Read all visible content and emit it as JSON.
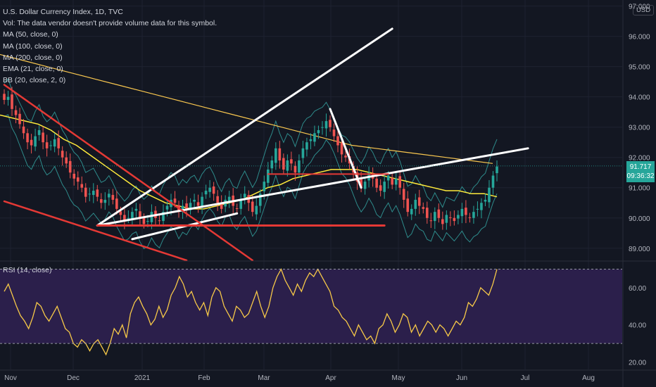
{
  "header": {
    "title": "U.S. Dollar Currency Index, 1D, TVC",
    "volume_note": "Vol: The data vendor doesn't provide volume data for this symbol.",
    "indicators": [
      "MA (50, close, 0)",
      "MA (100, close, 0)",
      "MA (200, close, 0)",
      "EMA (21, close, 0)",
      "BB (20, close, 2, 0)"
    ]
  },
  "currency_button": "USD",
  "price_tag": {
    "value": "91.717",
    "countdown": "09:36:32"
  },
  "rsi_label": "RSI (14, close)",
  "colors": {
    "background": "#131722",
    "up": "#26a69a",
    "down": "#ef5350",
    "ma50": "#ffeb3b",
    "ma200": "#f9c74f",
    "ma100": "#4a6fa5",
    "bb": "#2e8b8b",
    "rsi": "#f7c948",
    "rsi_band": "#2b1f4b",
    "trendline_white": "#ffffff",
    "trendline_red": "#e53935"
  },
  "chart_data": {
    "type": "candlestick",
    "x_ticks": [
      "Nov",
      "Dec",
      "2021",
      "Feb",
      "Mar",
      "Apr",
      "May",
      "Jun",
      "Jul",
      "Aug"
    ],
    "price_ticks": [
      "97.000",
      "96.000",
      "95.000",
      "94.000",
      "93.000",
      "92.000",
      "91.000",
      "90.000",
      "89.000"
    ],
    "price_range": [
      88.6,
      97.2
    ],
    "last_price": 91.717,
    "close_series": [
      93.9,
      94.0,
      93.6,
      93.4,
      93.1,
      92.8,
      92.5,
      92.4,
      92.7,
      92.9,
      92.5,
      92.3,
      92.4,
      92.6,
      92.3,
      92.0,
      91.8,
      91.5,
      91.3,
      91.2,
      91.0,
      90.7,
      90.8,
      90.9,
      90.7,
      90.5,
      90.6,
      90.8,
      90.6,
      90.3,
      90.1,
      89.9,
      90.0,
      90.2,
      90.3,
      90.0,
      89.8,
      89.9,
      90.2,
      90.0,
      89.9,
      90.2,
      90.4,
      90.6,
      90.5,
      90.2,
      90.4,
      90.3,
      90.5,
      90.6,
      90.4,
      90.7,
      90.9,
      91.0,
      90.8,
      90.5,
      90.3,
      90.6,
      90.7,
      90.4,
      90.3,
      90.6,
      90.8,
      90.5,
      90.2,
      90.4,
      90.8,
      91.2,
      91.6,
      91.9,
      92.3,
      91.9,
      91.6,
      91.9,
      91.8,
      91.5,
      91.9,
      92.3,
      92.5,
      92.6,
      92.8,
      92.9,
      93.0,
      93.2,
      93.0,
      92.7,
      92.4,
      92.1,
      92.0,
      91.8,
      91.5,
      91.2,
      91.0,
      91.2,
      91.5,
      91.3,
      91.0,
      90.9,
      91.2,
      91.4,
      91.1,
      91.3,
      91.0,
      90.6,
      90.2,
      90.3,
      90.6,
      90.4,
      90.3,
      90.0,
      89.9,
      90.2,
      90.0,
      89.8,
      90.1,
      90.0,
      89.9,
      90.1,
      90.3,
      90.1,
      90.0,
      90.2,
      90.3,
      90.5,
      90.6,
      91.0,
      91.4,
      91.7
    ],
    "ma50_series": [
      93.4,
      93.3,
      93.2,
      93.1,
      92.9,
      92.6,
      92.4,
      92.1,
      91.8,
      91.5,
      91.2,
      90.9,
      90.7,
      90.5,
      90.4,
      90.3,
      90.3,
      90.4,
      90.5,
      90.6,
      90.8,
      91.0,
      91.1,
      91.3,
      91.4,
      91.5,
      91.6,
      91.6,
      91.6,
      91.5,
      91.4,
      91.3,
      91.2,
      91.1,
      91.0,
      90.9,
      90.9,
      90.8,
      90.8,
      90.7
    ],
    "ma200_series": [
      95.4,
      95.2,
      95.0,
      94.8,
      94.6,
      94.4,
      94.2,
      94.0,
      93.8,
      93.6,
      93.4,
      93.2,
      93.0,
      92.8,
      92.6,
      92.4,
      92.3,
      92.2,
      92.1,
      92.0,
      91.9,
      91.8
    ],
    "rsi_ticks": [
      "60.00",
      "40.00",
      "20.00"
    ],
    "rsi_range": [
      16,
      74
    ],
    "rsi_bands": [
      70,
      30
    ],
    "rsi_series": [
      58,
      62,
      56,
      50,
      45,
      42,
      38,
      44,
      52,
      50,
      45,
      42,
      46,
      50,
      44,
      38,
      36,
      30,
      28,
      32,
      30,
      26,
      30,
      32,
      28,
      24,
      30,
      38,
      35,
      40,
      33,
      46,
      52,
      55,
      50,
      46,
      40,
      43,
      50,
      44,
      48,
      56,
      60,
      66,
      62,
      55,
      58,
      52,
      48,
      52,
      45,
      55,
      60,
      58,
      50,
      46,
      42,
      50,
      48,
      44,
      46,
      52,
      58,
      50,
      44,
      50,
      60,
      66,
      70,
      64,
      60,
      56,
      62,
      58,
      64,
      68,
      66,
      70,
      66,
      62,
      58,
      50,
      48,
      44,
      42,
      38,
      34,
      40,
      36,
      32,
      34,
      30,
      38,
      40,
      46,
      42,
      36,
      40,
      46,
      44,
      36,
      40,
      34,
      38,
      42,
      40,
      36,
      40,
      38,
      34,
      38,
      42,
      40,
      44,
      52,
      50,
      54,
      60,
      58,
      56,
      62,
      70
    ]
  }
}
